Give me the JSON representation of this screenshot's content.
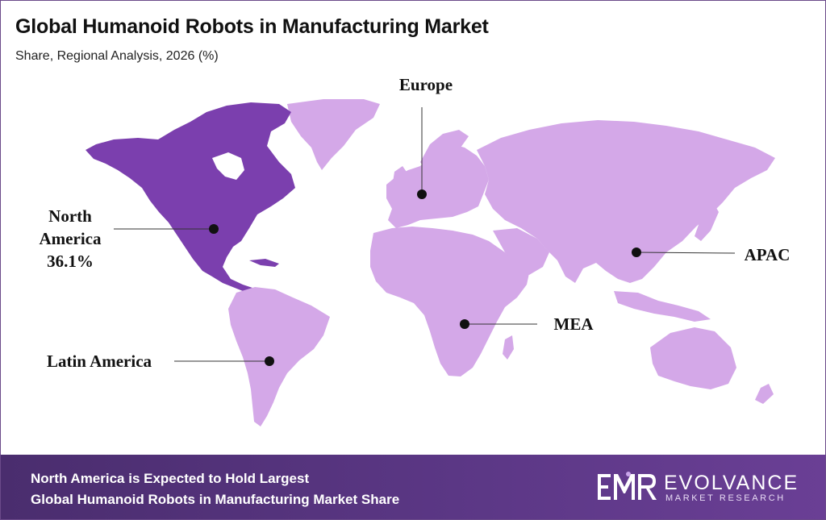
{
  "title": "Global Humanoid Robots in Manufacturing Market",
  "subtitle": "Share, Regional Analysis, 2026 (%)",
  "colors": {
    "highlight_region": "#7b3fae",
    "other_regions": "#d4a8e8",
    "footer": "#55307f",
    "marker": "#111111"
  },
  "regions": [
    {
      "name": "North America",
      "share": "36.1%",
      "highlighted": true
    },
    {
      "name": "Europe",
      "highlighted": false
    },
    {
      "name": "APAC",
      "highlighted": false
    },
    {
      "name": "MEA",
      "highlighted": false
    },
    {
      "name": "Latin America",
      "highlighted": false
    }
  ],
  "labels": {
    "north_america_line1": "North",
    "north_america_line2": "America",
    "north_america_share": "36.1%",
    "europe": "Europe",
    "apac": "APAC",
    "mea": "MEA",
    "latin_america": "Latin America"
  },
  "footer": {
    "line1": "North America is Expected to Hold Largest",
    "line2": "Global Humanoid Robots in Manufacturing Market Share"
  },
  "logo": {
    "name": "EVOLVANCE",
    "tagline": "MARKET RESEARCH"
  }
}
